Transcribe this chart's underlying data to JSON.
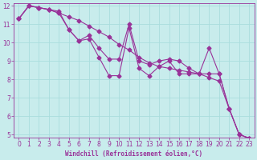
{
  "xlabel": "Windchill (Refroidissement éolien,°C)",
  "background_color": "#c8ecec",
  "line_color": "#993399",
  "grid_color": "#aadddd",
  "x": [
    0,
    1,
    2,
    3,
    4,
    5,
    6,
    7,
    8,
    9,
    10,
    11,
    12,
    13,
    14,
    15,
    16,
    17,
    18,
    19,
    20,
    21,
    22,
    23
  ],
  "series_main": [
    11.3,
    12.0,
    11.9,
    11.8,
    11.6,
    11.4,
    11.2,
    10.9,
    10.6,
    10.3,
    9.9,
    9.6,
    9.2,
    8.9,
    8.7,
    8.6,
    8.5,
    8.4,
    8.3,
    8.1,
    7.9,
    6.4,
    5.0,
    4.8
  ],
  "series_mid": [
    11.3,
    12.0,
    11.9,
    11.8,
    11.7,
    10.7,
    10.1,
    10.4,
    9.7,
    9.1,
    9.1,
    11.0,
    9.0,
    8.8,
    9.0,
    9.1,
    9.0,
    8.6,
    8.3,
    9.7,
    8.3,
    6.4,
    5.0,
    4.8
  ],
  "series_low": [
    11.3,
    12.0,
    11.9,
    11.8,
    11.6,
    10.7,
    10.1,
    10.2,
    9.2,
    8.2,
    8.2,
    10.8,
    8.6,
    8.2,
    8.7,
    9.0,
    8.3,
    8.3,
    8.3,
    8.3,
    8.3,
    6.4,
    5.0,
    4.8
  ],
  "ylim": [
    5,
    12
  ],
  "xlim": [
    -0.5,
    23.5
  ],
  "yticks": [
    5,
    6,
    7,
    8,
    9,
    10,
    11,
    12
  ],
  "xticks": [
    0,
    1,
    2,
    3,
    4,
    5,
    6,
    7,
    8,
    9,
    10,
    11,
    12,
    13,
    14,
    15,
    16,
    17,
    18,
    19,
    20,
    21,
    22,
    23
  ],
  "font_size": 5.5,
  "marker": "D",
  "markersize": 2.5
}
